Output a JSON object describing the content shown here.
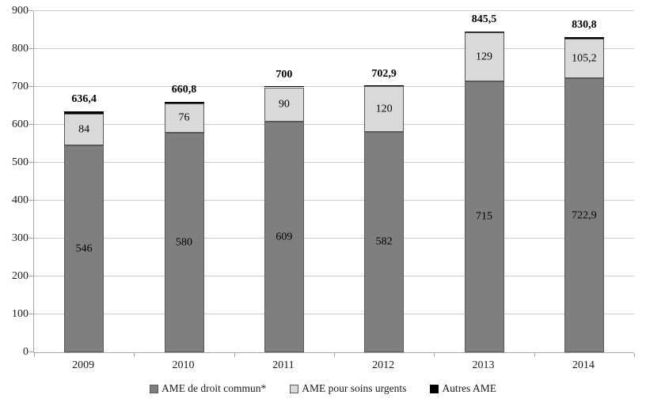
{
  "chart_data": {
    "type": "bar",
    "stacked": true,
    "categories": [
      "2009",
      "2010",
      "2011",
      "2012",
      "2013",
      "2014"
    ],
    "series": [
      {
        "name": "AME de droit commun*",
        "color": "#7f7f7f",
        "values": [
          546,
          580,
          609,
          582,
          715,
          722.9
        ],
        "labels": [
          "546",
          "580",
          "609",
          "582",
          "715",
          "722,9"
        ]
      },
      {
        "name": "AME pour soins urgents",
        "color": "#d9d9d9",
        "values": [
          84,
          76,
          90,
          120,
          129,
          105.2
        ],
        "labels": [
          "84",
          "76",
          "90",
          "120",
          "129",
          "105,2"
        ]
      },
      {
        "name": "Autres AME",
        "color": "#000000",
        "values": [
          6.4,
          4.8,
          1.0,
          0.9,
          1.5,
          2.7
        ],
        "labels": [
          "",
          "",
          "",
          "",
          "",
          ""
        ]
      }
    ],
    "totals": {
      "values": [
        636.4,
        660.8,
        700,
        702.9,
        845.5,
        830.8
      ],
      "labels": [
        "636,4",
        "660,8",
        "700",
        "702,9",
        "845,5",
        "830,8"
      ]
    },
    "ylim": [
      0,
      900
    ],
    "ytick_step": 100,
    "yticks": [
      "0",
      "100",
      "200",
      "300",
      "400",
      "500",
      "600",
      "700",
      "800",
      "900"
    ],
    "grid": true,
    "legend_position": "bottom"
  },
  "colors": {
    "gridline": "#c9c9c9",
    "axis": "#a6a6a6",
    "segment_border": "#595959",
    "text": "#1a1a1a"
  }
}
